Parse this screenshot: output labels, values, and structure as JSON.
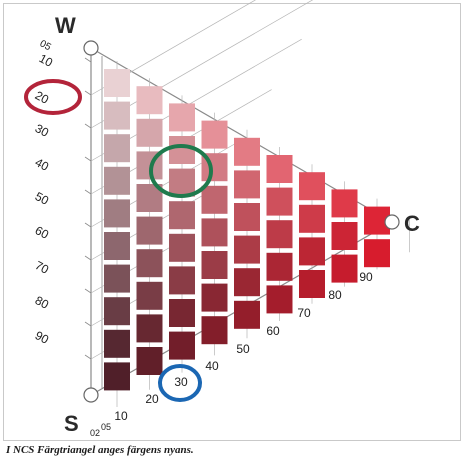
{
  "corners": {
    "white": "W",
    "black": "S",
    "chromatic": "C"
  },
  "whiteness_scale": [
    "05",
    "10",
    "20",
    "30",
    "40",
    "50",
    "60",
    "70",
    "80",
    "90"
  ],
  "blackness_scale": [
    "02",
    "05",
    "10",
    "20",
    "30",
    "40",
    "50",
    "60",
    "70",
    "80",
    "90"
  ],
  "caption": "I NCS Färgtriangel anges färgens nyans.",
  "highlights": [
    {
      "label": "20",
      "scale": "whiteness",
      "color": "#b3243a"
    },
    {
      "label": "30",
      "scale": "blackness",
      "color": "#1b67b3"
    },
    {
      "label": "40/30 swatch",
      "scale": "grid",
      "color": "#1f7a4d"
    }
  ],
  "colors": {
    "white": "#f4f1f1",
    "black": "#3c1e26",
    "chromatic": "#e51a2c",
    "line": "#8a8a8a"
  }
}
